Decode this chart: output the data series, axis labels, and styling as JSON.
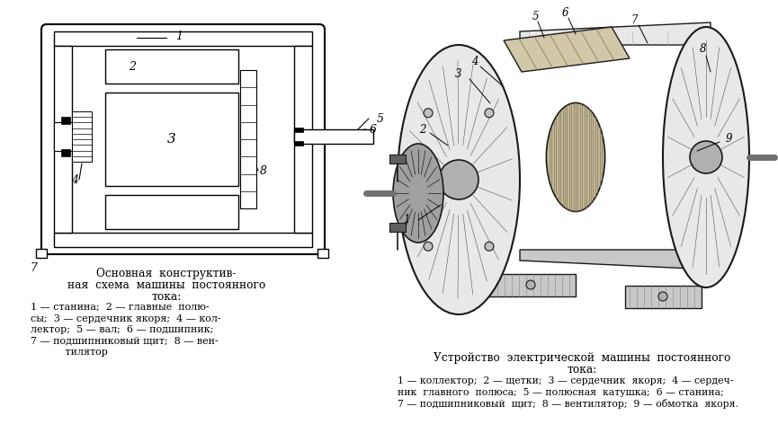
{
  "fig_width": 8.65,
  "fig_height": 4.82,
  "dpi": 100,
  "left_caption_lines": [
    "Основная  конструктив-",
    "ная  схема  машины  постоянного",
    "тока:",
    "1 — станина;  2 — главные  полю-",
    "сы;  3 — сердечник якоря;  4 — кол-",
    "лектор;  5 — вал;  6 — подшипник;",
    "7 — подшипниковый щит;  8 — вен-",
    "           тилятор"
  ],
  "right_caption_title1": "Устройство  электрической  машины  постоянного",
  "right_caption_title2": "тока:",
  "right_caption_lines": [
    "1 — коллектор;  2 — щетки;  3 — сердечник  якоря;  4 — сердеч-",
    "ник  главного  полюса;  5 — полюсная  катушка;  6 — станина;",
    "7 — подшипниковый  щит;  8 — вентилятор;  9 — обмотка  якоря."
  ]
}
